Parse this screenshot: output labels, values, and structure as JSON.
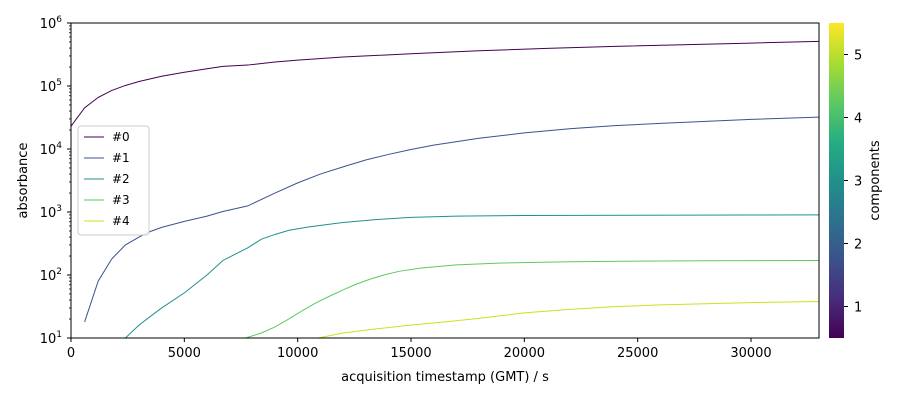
{
  "chart_data": {
    "type": "line",
    "title": "",
    "xlabel": "acquisition timestamp (GMT) / s",
    "ylabel": "absorbance",
    "xlim": [
      0,
      33000
    ],
    "ylim": [
      10,
      1000000
    ],
    "yscale": "log",
    "x_ticks": [
      0,
      5000,
      10000,
      15000,
      20000,
      25000,
      30000
    ],
    "x_tick_labels": [
      "0",
      "5000",
      "10000",
      "15000",
      "20000",
      "25000",
      "30000"
    ],
    "y_ticks": [
      {
        "value": 10,
        "base": "10",
        "exp": "1"
      },
      {
        "value": 100,
        "base": "10",
        "exp": "2"
      },
      {
        "value": 1000,
        "base": "10",
        "exp": "3"
      },
      {
        "value": 10000,
        "base": "10",
        "exp": "4"
      },
      {
        "value": 100000,
        "base": "10",
        "exp": "5"
      },
      {
        "value": 1000000,
        "base": "10",
        "exp": "6"
      }
    ],
    "grid": false,
    "legend_position": "center-left",
    "colorbar": {
      "label": "components",
      "range": [
        0.5,
        5.5
      ],
      "ticks": [
        "1",
        "2",
        "3",
        "4",
        "5"
      ],
      "colormap": "viridis"
    },
    "series": [
      {
        "name": "#0",
        "color": "#440154",
        "x": [
          0,
          600,
          1200,
          1800,
          2400,
          3000,
          4000,
          5000,
          6000,
          6700,
          7800,
          9000,
          10000,
          12000,
          15000,
          18000,
          21000,
          24000,
          27000,
          30000,
          33000
        ],
        "y": [
          23000,
          45000,
          66000,
          85000,
          102000,
          118000,
          143000,
          165000,
          188000,
          205000,
          215000,
          240000,
          258000,
          288000,
          325000,
          362000,
          395000,
          425000,
          452000,
          480000,
          510000
        ]
      },
      {
        "name": "#1",
        "color": "#3b528b",
        "x": [
          600,
          1200,
          1800,
          2400,
          3000,
          3500,
          4000,
          5000,
          6000,
          6700,
          7800,
          9000,
          10000,
          11000,
          12000,
          13000,
          14000,
          15000,
          16000,
          18000,
          20000,
          22000,
          24000,
          26000,
          28000,
          30000,
          33000
        ],
        "y": [
          18,
          80,
          180,
          300,
          400,
          490,
          570,
          710,
          860,
          1020,
          1250,
          2000,
          2900,
          4000,
          5200,
          6700,
          8200,
          9800,
          11500,
          14800,
          18000,
          21000,
          23500,
          25500,
          27500,
          29500,
          32000
        ]
      },
      {
        "name": "#2",
        "color": "#21908c",
        "x": [
          2400,
          3000,
          3500,
          4000,
          5000,
          6000,
          6700,
          7800,
          8400,
          9000,
          9600,
          10500,
          12000,
          13500,
          15000,
          17000,
          20000,
          25000,
          30000,
          33000
        ],
        "y": [
          10,
          16,
          22,
          30,
          52,
          100,
          170,
          270,
          370,
          440,
          510,
          580,
          680,
          760,
          820,
          860,
          880,
          890,
          895,
          900
        ]
      },
      {
        "name": "#3",
        "color": "#5ec962",
        "x": [
          7700,
          8400,
          9000,
          9600,
          10200,
          10800,
          11400,
          12000,
          12600,
          13200,
          13800,
          14500,
          15500,
          17000,
          19000,
          22000,
          25000,
          28000,
          33000
        ],
        "y": [
          10,
          12,
          15,
          20,
          27,
          36,
          46,
          58,
          72,
          86,
          100,
          115,
          130,
          145,
          155,
          162,
          166,
          168,
          170
        ]
      },
      {
        "name": "#4",
        "color": "#d0e11c",
        "x": [
          10900,
          12000,
          13500,
          15000,
          16500,
          18000,
          20000,
          22000,
          24000,
          26000,
          28000,
          30000,
          33000
        ],
        "y": [
          10,
          12,
          14,
          16,
          18,
          20.5,
          25,
          28.5,
          31.5,
          33.5,
          35,
          36.5,
          38
        ]
      }
    ]
  }
}
